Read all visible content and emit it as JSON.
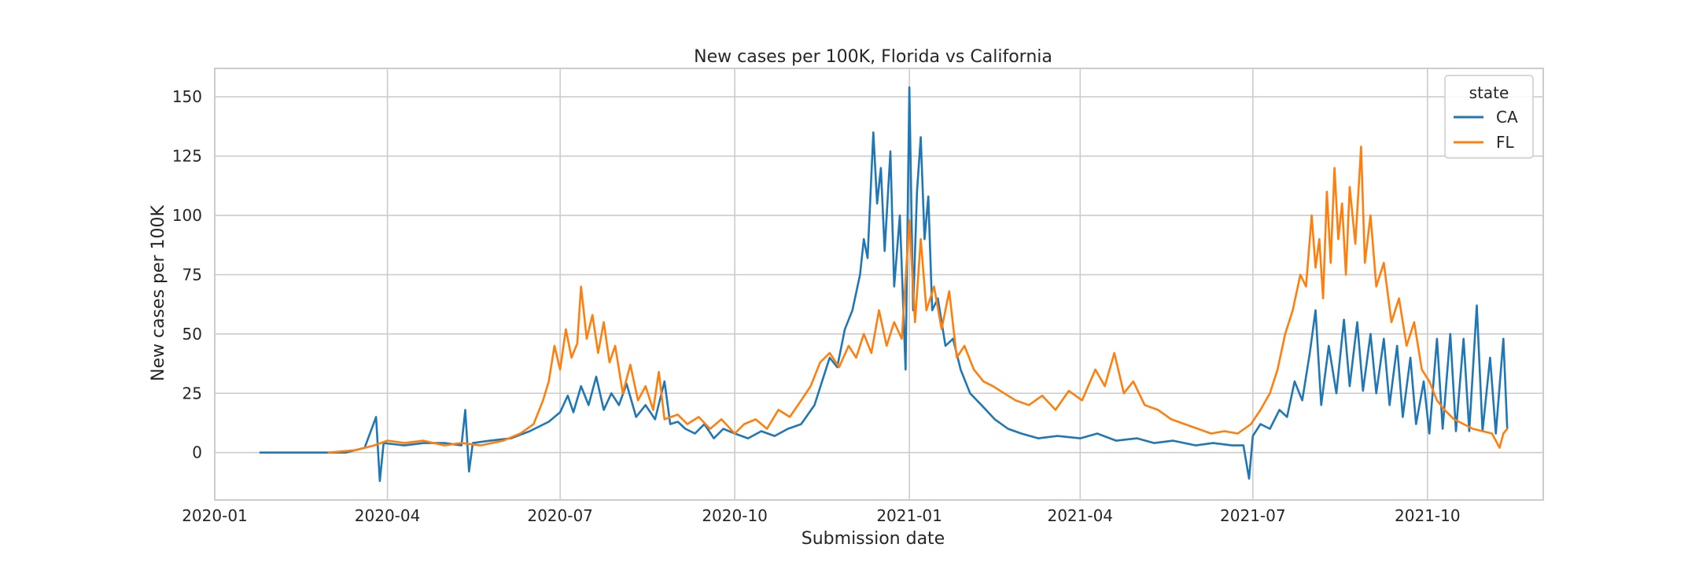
{
  "chart_data": {
    "type": "line",
    "title": "New cases per 100K, Florida vs California",
    "xlabel": "Submission date",
    "ylabel": "New cases per 100K",
    "xlim": [
      "2020-01-01",
      "2021-12-01"
    ],
    "ylim": [
      -20,
      162
    ],
    "x_ticks": [
      "2020-01",
      "2020-04",
      "2020-07",
      "2020-10",
      "2021-01",
      "2021-04",
      "2021-07",
      "2021-10"
    ],
    "y_ticks": [
      0,
      25,
      50,
      75,
      100,
      125,
      150
    ],
    "grid": true,
    "legend": {
      "title": "state",
      "placement": "top-right"
    },
    "series": [
      {
        "name": "CA",
        "color": "#1f77b4",
        "points": [
          [
            "2020-01-25",
            0
          ],
          [
            "2020-02-15",
            0
          ],
          [
            "2020-03-10",
            0
          ],
          [
            "2020-03-20",
            2
          ],
          [
            "2020-03-26",
            15
          ],
          [
            "2020-03-28",
            -12
          ],
          [
            "2020-03-30",
            4
          ],
          [
            "2020-04-10",
            3
          ],
          [
            "2020-04-20",
            4
          ],
          [
            "2020-05-01",
            4
          ],
          [
            "2020-05-10",
            3
          ],
          [
            "2020-05-12",
            18
          ],
          [
            "2020-05-14",
            -8
          ],
          [
            "2020-05-16",
            4
          ],
          [
            "2020-05-25",
            5
          ],
          [
            "2020-06-05",
            6
          ],
          [
            "2020-06-15",
            9
          ],
          [
            "2020-06-25",
            13
          ],
          [
            "2020-07-01",
            17
          ],
          [
            "2020-07-05",
            24
          ],
          [
            "2020-07-08",
            17
          ],
          [
            "2020-07-12",
            28
          ],
          [
            "2020-07-16",
            20
          ],
          [
            "2020-07-20",
            32
          ],
          [
            "2020-07-24",
            18
          ],
          [
            "2020-07-28",
            25
          ],
          [
            "2020-08-01",
            20
          ],
          [
            "2020-08-05",
            29
          ],
          [
            "2020-08-10",
            15
          ],
          [
            "2020-08-15",
            20
          ],
          [
            "2020-08-20",
            14
          ],
          [
            "2020-08-25",
            30
          ],
          [
            "2020-08-28",
            12
          ],
          [
            "2020-09-01",
            13
          ],
          [
            "2020-09-05",
            10
          ],
          [
            "2020-09-10",
            8
          ],
          [
            "2020-09-15",
            12
          ],
          [
            "2020-09-20",
            6
          ],
          [
            "2020-09-25",
            10
          ],
          [
            "2020-10-01",
            8
          ],
          [
            "2020-10-08",
            6
          ],
          [
            "2020-10-15",
            9
          ],
          [
            "2020-10-22",
            7
          ],
          [
            "2020-10-29",
            10
          ],
          [
            "2020-11-05",
            12
          ],
          [
            "2020-11-12",
            20
          ],
          [
            "2020-11-16",
            30
          ],
          [
            "2020-11-20",
            40
          ],
          [
            "2020-11-24",
            36
          ],
          [
            "2020-11-28",
            52
          ],
          [
            "2020-12-02",
            60
          ],
          [
            "2020-12-06",
            75
          ],
          [
            "2020-12-08",
            90
          ],
          [
            "2020-12-10",
            82
          ],
          [
            "2020-12-13",
            135
          ],
          [
            "2020-12-15",
            105
          ],
          [
            "2020-12-17",
            120
          ],
          [
            "2020-12-19",
            85
          ],
          [
            "2020-12-22",
            127
          ],
          [
            "2020-12-24",
            70
          ],
          [
            "2020-12-27",
            100
          ],
          [
            "2020-12-30",
            35
          ],
          [
            "2021-01-01",
            154
          ],
          [
            "2021-01-03",
            60
          ],
          [
            "2021-01-05",
            110
          ],
          [
            "2021-01-07",
            133
          ],
          [
            "2021-01-09",
            90
          ],
          [
            "2021-01-11",
            108
          ],
          [
            "2021-01-13",
            60
          ],
          [
            "2021-01-16",
            65
          ],
          [
            "2021-01-20",
            45
          ],
          [
            "2021-01-24",
            48
          ],
          [
            "2021-01-28",
            35
          ],
          [
            "2021-02-02",
            25
          ],
          [
            "2021-02-08",
            20
          ],
          [
            "2021-02-15",
            14
          ],
          [
            "2021-02-22",
            10
          ],
          [
            "2021-03-01",
            8
          ],
          [
            "2021-03-10",
            6
          ],
          [
            "2021-03-20",
            7
          ],
          [
            "2021-04-01",
            6
          ],
          [
            "2021-04-10",
            8
          ],
          [
            "2021-04-20",
            5
          ],
          [
            "2021-05-01",
            6
          ],
          [
            "2021-05-10",
            4
          ],
          [
            "2021-05-20",
            5
          ],
          [
            "2021-06-01",
            3
          ],
          [
            "2021-06-10",
            4
          ],
          [
            "2021-06-20",
            3
          ],
          [
            "2021-06-26",
            3
          ],
          [
            "2021-06-29",
            -11
          ],
          [
            "2021-07-01",
            7
          ],
          [
            "2021-07-05",
            12
          ],
          [
            "2021-07-10",
            10
          ],
          [
            "2021-07-15",
            18
          ],
          [
            "2021-07-19",
            15
          ],
          [
            "2021-07-23",
            30
          ],
          [
            "2021-07-27",
            22
          ],
          [
            "2021-07-31",
            42
          ],
          [
            "2021-08-03",
            60
          ],
          [
            "2021-08-06",
            20
          ],
          [
            "2021-08-10",
            45
          ],
          [
            "2021-08-14",
            25
          ],
          [
            "2021-08-18",
            56
          ],
          [
            "2021-08-21",
            28
          ],
          [
            "2021-08-25",
            55
          ],
          [
            "2021-08-28",
            26
          ],
          [
            "2021-09-01",
            50
          ],
          [
            "2021-09-04",
            25
          ],
          [
            "2021-09-08",
            48
          ],
          [
            "2021-09-11",
            20
          ],
          [
            "2021-09-15",
            45
          ],
          [
            "2021-09-18",
            15
          ],
          [
            "2021-09-22",
            40
          ],
          [
            "2021-09-25",
            12
          ],
          [
            "2021-09-29",
            30
          ],
          [
            "2021-10-02",
            8
          ],
          [
            "2021-10-06",
            48
          ],
          [
            "2021-10-09",
            10
          ],
          [
            "2021-10-13",
            50
          ],
          [
            "2021-10-16",
            9
          ],
          [
            "2021-10-20",
            48
          ],
          [
            "2021-10-23",
            9
          ],
          [
            "2021-10-27",
            62
          ],
          [
            "2021-10-30",
            9
          ],
          [
            "2021-11-03",
            40
          ],
          [
            "2021-11-06",
            8
          ],
          [
            "2021-11-10",
            48
          ],
          [
            "2021-11-12",
            10
          ]
        ]
      },
      {
        "name": "FL",
        "color": "#ff7f0e",
        "points": [
          [
            "2020-03-01",
            0
          ],
          [
            "2020-03-15",
            1
          ],
          [
            "2020-03-25",
            3
          ],
          [
            "2020-04-01",
            5
          ],
          [
            "2020-04-10",
            4
          ],
          [
            "2020-04-20",
            5
          ],
          [
            "2020-05-01",
            3
          ],
          [
            "2020-05-10",
            4
          ],
          [
            "2020-05-20",
            3
          ],
          [
            "2020-06-01",
            5
          ],
          [
            "2020-06-10",
            8
          ],
          [
            "2020-06-17",
            12
          ],
          [
            "2020-06-22",
            22
          ],
          [
            "2020-06-25",
            30
          ],
          [
            "2020-06-28",
            45
          ],
          [
            "2020-07-01",
            35
          ],
          [
            "2020-07-04",
            52
          ],
          [
            "2020-07-07",
            40
          ],
          [
            "2020-07-10",
            46
          ],
          [
            "2020-07-12",
            70
          ],
          [
            "2020-07-15",
            48
          ],
          [
            "2020-07-18",
            58
          ],
          [
            "2020-07-21",
            42
          ],
          [
            "2020-07-24",
            55
          ],
          [
            "2020-07-27",
            38
          ],
          [
            "2020-07-30",
            45
          ],
          [
            "2020-08-03",
            25
          ],
          [
            "2020-08-07",
            37
          ],
          [
            "2020-08-11",
            22
          ],
          [
            "2020-08-15",
            28
          ],
          [
            "2020-08-19",
            18
          ],
          [
            "2020-08-22",
            34
          ],
          [
            "2020-08-25",
            14
          ],
          [
            "2020-09-01",
            16
          ],
          [
            "2020-09-06",
            12
          ],
          [
            "2020-09-12",
            15
          ],
          [
            "2020-09-18",
            10
          ],
          [
            "2020-09-24",
            14
          ],
          [
            "2020-10-01",
            8
          ],
          [
            "2020-10-06",
            12
          ],
          [
            "2020-10-12",
            14
          ],
          [
            "2020-10-18",
            10
          ],
          [
            "2020-10-24",
            18
          ],
          [
            "2020-10-30",
            15
          ],
          [
            "2020-11-05",
            22
          ],
          [
            "2020-11-10",
            28
          ],
          [
            "2020-11-15",
            38
          ],
          [
            "2020-11-20",
            42
          ],
          [
            "2020-11-25",
            36
          ],
          [
            "2020-11-30",
            45
          ],
          [
            "2020-12-04",
            40
          ],
          [
            "2020-12-08",
            50
          ],
          [
            "2020-12-12",
            42
          ],
          [
            "2020-12-16",
            60
          ],
          [
            "2020-12-20",
            45
          ],
          [
            "2020-12-24",
            55
          ],
          [
            "2020-12-28",
            48
          ],
          [
            "2021-01-01",
            98
          ],
          [
            "2021-01-04",
            55
          ],
          [
            "2021-01-07",
            90
          ],
          [
            "2021-01-10",
            60
          ],
          [
            "2021-01-14",
            70
          ],
          [
            "2021-01-18",
            52
          ],
          [
            "2021-01-22",
            68
          ],
          [
            "2021-01-26",
            40
          ],
          [
            "2021-01-30",
            45
          ],
          [
            "2021-02-04",
            35
          ],
          [
            "2021-02-09",
            30
          ],
          [
            "2021-02-14",
            28
          ],
          [
            "2021-02-20",
            25
          ],
          [
            "2021-02-26",
            22
          ],
          [
            "2021-03-05",
            20
          ],
          [
            "2021-03-12",
            24
          ],
          [
            "2021-03-19",
            18
          ],
          [
            "2021-03-26",
            26
          ],
          [
            "2021-04-02",
            22
          ],
          [
            "2021-04-09",
            35
          ],
          [
            "2021-04-14",
            28
          ],
          [
            "2021-04-19",
            42
          ],
          [
            "2021-04-24",
            25
          ],
          [
            "2021-04-29",
            30
          ],
          [
            "2021-05-05",
            20
          ],
          [
            "2021-05-12",
            18
          ],
          [
            "2021-05-19",
            14
          ],
          [
            "2021-05-26",
            12
          ],
          [
            "2021-06-02",
            10
          ],
          [
            "2021-06-09",
            8
          ],
          [
            "2021-06-16",
            9
          ],
          [
            "2021-06-23",
            8
          ],
          [
            "2021-06-30",
            12
          ],
          [
            "2021-07-05",
            18
          ],
          [
            "2021-07-10",
            25
          ],
          [
            "2021-07-14",
            35
          ],
          [
            "2021-07-18",
            50
          ],
          [
            "2021-07-22",
            60
          ],
          [
            "2021-07-26",
            75
          ],
          [
            "2021-07-29",
            70
          ],
          [
            "2021-08-01",
            100
          ],
          [
            "2021-08-03",
            78
          ],
          [
            "2021-08-05",
            90
          ],
          [
            "2021-08-07",
            65
          ],
          [
            "2021-08-09",
            110
          ],
          [
            "2021-08-11",
            80
          ],
          [
            "2021-08-13",
            120
          ],
          [
            "2021-08-15",
            90
          ],
          [
            "2021-08-17",
            105
          ],
          [
            "2021-08-19",
            75
          ],
          [
            "2021-08-21",
            112
          ],
          [
            "2021-08-24",
            88
          ],
          [
            "2021-08-27",
            129
          ],
          [
            "2021-08-29",
            80
          ],
          [
            "2021-09-01",
            100
          ],
          [
            "2021-09-04",
            70
          ],
          [
            "2021-09-08",
            80
          ],
          [
            "2021-09-12",
            55
          ],
          [
            "2021-09-16",
            65
          ],
          [
            "2021-09-20",
            45
          ],
          [
            "2021-09-24",
            55
          ],
          [
            "2021-09-28",
            35
          ],
          [
            "2021-10-02",
            30
          ],
          [
            "2021-10-06",
            22
          ],
          [
            "2021-10-10",
            18
          ],
          [
            "2021-10-15",
            14
          ],
          [
            "2021-10-20",
            12
          ],
          [
            "2021-10-25",
            10
          ],
          [
            "2021-10-30",
            9
          ],
          [
            "2021-11-04",
            8
          ],
          [
            "2021-11-08",
            2
          ],
          [
            "2021-11-10",
            8
          ],
          [
            "2021-11-12",
            10
          ]
        ]
      }
    ]
  }
}
